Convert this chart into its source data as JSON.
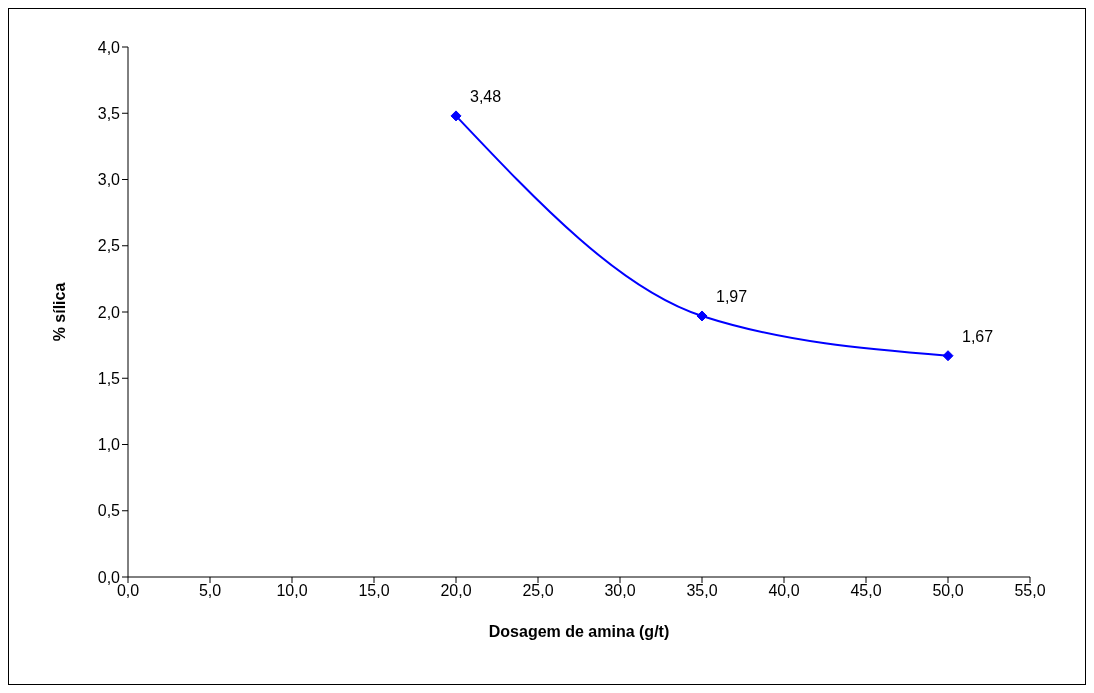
{
  "chart_data": {
    "type": "line",
    "xlabel": "Dosagem de amina (g/t)",
    "ylabel": "% sílica",
    "x": [
      20,
      35,
      50
    ],
    "series": [
      {
        "color": "#0000ff",
        "values": [
          3.48,
          1.97,
          1.67
        ],
        "value_labels": [
          "3,48",
          "1,97",
          "1,67"
        ]
      }
    ],
    "xlim": [
      0,
      55
    ],
    "xticks": [
      {
        "value": 0,
        "label": "0,0"
      },
      {
        "value": 5,
        "label": "5,0"
      },
      {
        "value": 10,
        "label": "10,0"
      },
      {
        "value": 15,
        "label": "15,0"
      },
      {
        "value": 20,
        "label": "20,0"
      },
      {
        "value": 25,
        "label": "25,0"
      },
      {
        "value": 30,
        "label": "30,0"
      },
      {
        "value": 35,
        "label": "35,0"
      },
      {
        "value": 40,
        "label": "40,0"
      },
      {
        "value": 45,
        "label": "45,0"
      },
      {
        "value": 50,
        "label": "50,0"
      },
      {
        "value": 55,
        "label": "55,0"
      }
    ],
    "ylim": [
      0,
      4
    ],
    "yticks": [
      {
        "value": 0,
        "label": "0,0"
      },
      {
        "value": 0.5,
        "label": "0,5"
      },
      {
        "value": 1,
        "label": "1,0"
      },
      {
        "value": 1.5,
        "label": "1,5"
      },
      {
        "value": 2,
        "label": "2,0"
      },
      {
        "value": 2.5,
        "label": "2,5"
      },
      {
        "value": 3,
        "label": "3,0"
      },
      {
        "value": 3.5,
        "label": "3,5"
      },
      {
        "value": 4,
        "label": "4,0"
      }
    ],
    "grid": false,
    "legend": false,
    "marker": "diamond",
    "line_style": "solid"
  }
}
